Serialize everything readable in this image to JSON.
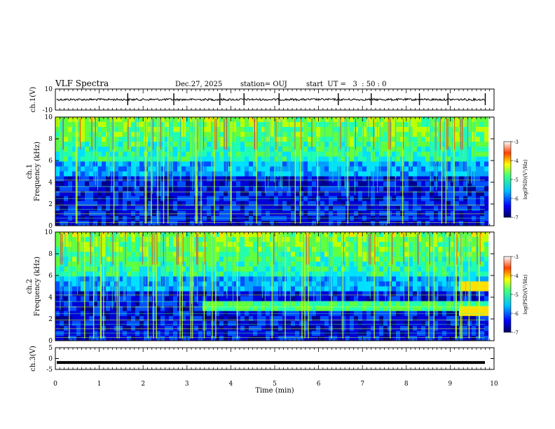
{
  "header": {
    "title": "VLF Spectra",
    "date": "Dec.27, 2025",
    "station": "station= OUJ",
    "start": "start  UT =   3  : 50 : 0"
  },
  "chart_data": [
    {
      "type": "line",
      "name": "ch1-waveform",
      "ylabel": "ch.1(V)",
      "ylim": [
        -10,
        10
      ],
      "yticks": [
        "10",
        "-10"
      ],
      "xlim": [
        0,
        10
      ]
    },
    {
      "type": "heatmap",
      "name": "ch1-spectrogram",
      "ylabel": "ch.1\nFrequency (kHz)",
      "ylim": [
        0,
        10
      ],
      "yticks": [
        "0",
        "2",
        "4",
        "6",
        "8",
        "10"
      ],
      "xlim": [
        0,
        10
      ],
      "colorbar": {
        "label": "log(PSD)(V²/Hz)",
        "range": [
          -7,
          -3
        ],
        "ticks": [
          "-3",
          "-4",
          "-5",
          "-6",
          "-7"
        ]
      }
    },
    {
      "type": "heatmap",
      "name": "ch2-spectrogram",
      "ylabel": "ch.2\nFrequency (kHz)",
      "ylim": [
        0,
        10
      ],
      "yticks": [
        "0",
        "2",
        "4",
        "6",
        "8",
        "10"
      ],
      "xlim": [
        0,
        10
      ],
      "colorbar": {
        "label": "log(PSD)(V²/Hz)",
        "range": [
          -7,
          -3
        ],
        "ticks": [
          "-3",
          "-4",
          "-5",
          "-6",
          "-7"
        ]
      }
    },
    {
      "type": "line",
      "name": "ch3-waveform",
      "ylabel": "ch.3(V)",
      "ylim": [
        -5,
        5
      ],
      "yticks": [
        "5",
        "0",
        "-5"
      ],
      "xlim": [
        0,
        10
      ],
      "xlabel": "Time (min)",
      "xticks": [
        "0",
        "1",
        "2",
        "3",
        "4",
        "5",
        "6",
        "7",
        "8",
        "9",
        "10"
      ]
    }
  ]
}
